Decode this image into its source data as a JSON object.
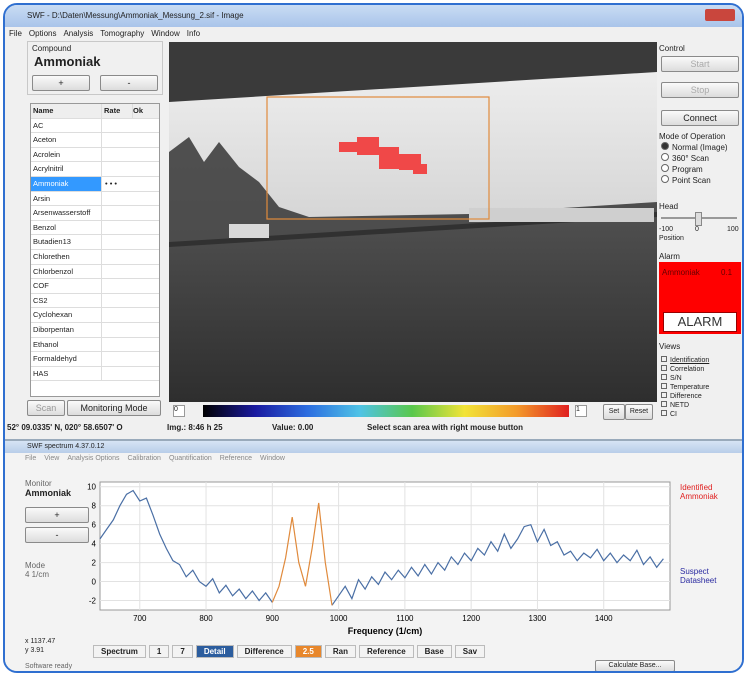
{
  "window": {
    "title": "SWF - D:\\Daten\\Messung\\Ammoniak_Messung_2.sif - Image",
    "menu": [
      "File",
      "Options",
      "Analysis",
      "Tomography",
      "Window",
      "Info"
    ]
  },
  "compound": {
    "label": "Compound",
    "name": "Ammoniak",
    "plus": "+",
    "minus": "-"
  },
  "list": {
    "headers": [
      "Name",
      "Rate",
      "Ok"
    ],
    "items": [
      "AC",
      "Aceton",
      "Acrolein",
      "Acrylnitril",
      "Ammoniak",
      "Arsin",
      "Arsenwasserstoff",
      "Benzol",
      "Butadien13",
      "Chlorethen",
      "Chlorbenzol",
      "COF",
      "CS2",
      "Cyclohexan",
      "Diborpentan",
      "Ethanol",
      "Formaldehyd",
      "HAS"
    ],
    "selected": 4,
    "selected_rate": "• • •"
  },
  "left_buttons": [
    "Scan",
    "Monitoring Mode"
  ],
  "colorbar": {
    "min": "0",
    "max": "1",
    "set": "Set",
    "reset": "Reset"
  },
  "control": {
    "label": "Control",
    "start": "Start",
    "stop": "Stop",
    "connect": "Connect"
  },
  "mode": {
    "label": "Mode of Operation",
    "options": [
      "Normal (Image)",
      "360° Scan",
      "Program",
      "Point Scan"
    ]
  },
  "head": {
    "label": "Head",
    "ticks": [
      "-100",
      "0",
      "100"
    ],
    "position": "Position"
  },
  "alarm": {
    "label": "Alarm",
    "compound": "Ammoniak",
    "level": "0.1",
    "text": "ALARM"
  },
  "views": {
    "label": "Views",
    "options": [
      "Identification",
      "Correlation",
      "S/N",
      "Temperature",
      "Difference",
      "NETD",
      "CI"
    ]
  },
  "status": [
    "52° 09.0335' N, 020° 58.6507' O",
    "Img.: 8:46 h 25",
    "Value: 0.00",
    "Select scan area with right mouse button"
  ],
  "spectrum_window": {
    "title": "SWF spectrum 4.37.0.12",
    "menu": [
      "File",
      "View",
      "Analysis Options",
      "Calibration",
      "Quantification",
      "Reference",
      "Window"
    ],
    "monitor": "Monitor",
    "compound": "Ammoniak",
    "plus": "+",
    "minus": "-",
    "mode": "Mode",
    "resolution": "4 1/cm",
    "identified": "Identified",
    "identified_name": "Ammoniak",
    "suspect": "Suspect",
    "suspect_name": "Datasheet",
    "coords": [
      "x 1137.47",
      "y 3.91"
    ],
    "toolbar": [
      "Spectrum",
      "1",
      "7",
      "Detail",
      "Difference",
      "2.5",
      "Ran",
      "Reference",
      "Base",
      "Sav"
    ],
    "status": "Software ready",
    "calc": "Calculate Base..."
  },
  "spectrum": {
    "type": "line",
    "x_label": "Frequency (1/cm)",
    "x": [
      640,
      650,
      660,
      670,
      680,
      690,
      700,
      710,
      720,
      730,
      740,
      750,
      760,
      770,
      780,
      790,
      800,
      810,
      820,
      830,
      840,
      850,
      860,
      870,
      880,
      890,
      900,
      910,
      920,
      930,
      940,
      950,
      960,
      970,
      980,
      990,
      1000,
      1010,
      1020,
      1030,
      1040,
      1050,
      1060,
      1070,
      1080,
      1090,
      1100,
      1110,
      1120,
      1130,
      1140,
      1150,
      1160,
      1170,
      1180,
      1190,
      1200,
      1210,
      1220,
      1230,
      1240,
      1250,
      1260,
      1270,
      1280,
      1290,
      1300,
      1310,
      1320,
      1330,
      1340,
      1350,
      1360,
      1370,
      1380,
      1390,
      1400,
      1410,
      1420,
      1430,
      1440,
      1450,
      1460,
      1470,
      1480,
      1490
    ],
    "series": [
      {
        "color": "#4a6fa5",
        "values": [
          4.5,
          5.5,
          6.5,
          8,
          9.2,
          9.6,
          8.5,
          8.8,
          7,
          5,
          3.5,
          2.2,
          1.8,
          0.5,
          1.2,
          0,
          -0.5,
          0.3,
          -1.2,
          -0.4,
          -1.5,
          -0.8,
          -1.8,
          -1,
          -2,
          -1.2,
          -2.2,
          null,
          null,
          null,
          null,
          null,
          null,
          null,
          null,
          -2.5,
          -1.5,
          -0.5,
          -1.8,
          0.2,
          -0.8,
          0.5,
          -0.3,
          1,
          0.2,
          1.2,
          0.4,
          1.5,
          0.6,
          1.8,
          0.8,
          2,
          1.2,
          2.6,
          1.8,
          3,
          2.2,
          3.5,
          2.8,
          4.2,
          3.2,
          5,
          3.5,
          4.5,
          5.8,
          6,
          4.2,
          5.5,
          3.8,
          4.2,
          2.8,
          3.2,
          2.2,
          3,
          2.5,
          3.4,
          2.2,
          3,
          2,
          2.8,
          2.2,
          3.3,
          1.8,
          2.6,
          1.5,
          2.4
        ]
      },
      {
        "color": "#e08a3c",
        "values": [
          null,
          null,
          null,
          null,
          null,
          null,
          null,
          null,
          null,
          null,
          null,
          null,
          null,
          null,
          null,
          null,
          null,
          null,
          null,
          null,
          null,
          null,
          null,
          null,
          null,
          null,
          -2.2,
          -0.5,
          2.5,
          6.8,
          2,
          -0.5,
          3.5,
          8.3,
          2,
          -2.5,
          null,
          null,
          null,
          null,
          null,
          null,
          null,
          null,
          null,
          null,
          null,
          null,
          null,
          null,
          null,
          null,
          null,
          null,
          null,
          null,
          null,
          null,
          null,
          null,
          null,
          null,
          null,
          null,
          null,
          null,
          null,
          null,
          null,
          null,
          null,
          null,
          null,
          null,
          null,
          null,
          null,
          null,
          null,
          null,
          null,
          null,
          null,
          null,
          null,
          null
        ]
      }
    ],
    "xlim": [
      640,
      1500
    ],
    "ylim": [
      -3,
      10.5
    ],
    "xticks": [
      700,
      800,
      900,
      1000,
      1100,
      1200,
      1300,
      1400
    ],
    "yticks": [
      10,
      8,
      6,
      4,
      2,
      0,
      -2
    ],
    "grid": true
  }
}
